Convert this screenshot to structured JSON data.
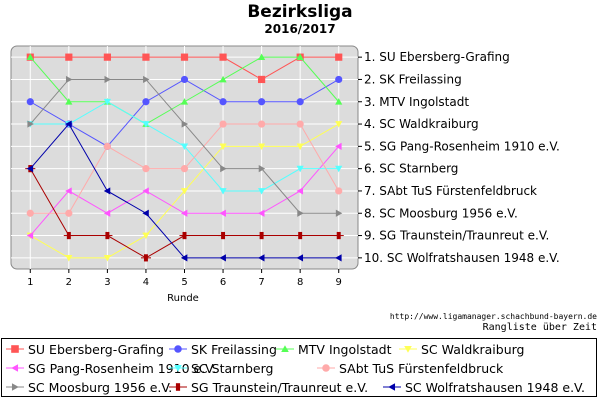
{
  "title": "Bezirksliga",
  "subtitle": "2016/2017",
  "url": "http://www.ligamanager.schachbund-bayern.de",
  "caption": "Rangliste über Zeit",
  "xlabel": "Runde",
  "chart_data": {
    "type": "line",
    "title": "Bezirksliga",
    "subtitle": "2016/2017",
    "xlabel": "Runde",
    "ylabel": "",
    "x": [
      1,
      2,
      3,
      4,
      5,
      6,
      7,
      8,
      9
    ],
    "xlim": [
      0.5,
      9.5
    ],
    "ylim": [
      0.5,
      10.5
    ],
    "y_inverted": true,
    "grid": true,
    "legend": "bottom",
    "rank_labels": [
      "1. SU Ebersberg-Grafing",
      "2. SK Freilassing",
      "3. MTV Ingolstadt",
      "4. SC Waldkraiburg",
      "5. SG Pang-Rosenheim 1910 e.V.",
      "6. SC Starnberg",
      "7. SAbt TuS Fürstenfeldbruck",
      "8. SC Moosburg 1956 e.V.",
      "9. SG Traunstein/Traunreut e.V.",
      "10. SC Wolfratshausen 1948 e.V."
    ],
    "series": [
      {
        "name": "SU Ebersberg-Grafing",
        "color": "#ff5555",
        "marker": "square",
        "values": [
          1,
          1,
          1,
          1,
          1,
          1,
          2,
          1,
          1
        ]
      },
      {
        "name": "SK Freilassing",
        "color": "#5555ff",
        "marker": "circle",
        "values": [
          3,
          4,
          5,
          3,
          2,
          3,
          3,
          3,
          2
        ]
      },
      {
        "name": "MTV Ingolstadt",
        "color": "#55ff55",
        "marker": "triangle-up",
        "values": [
          1,
          3,
          3,
          4,
          3,
          2,
          1,
          1,
          3
        ]
      },
      {
        "name": "SC Waldkraiburg",
        "color": "#ffff55",
        "marker": "triangle-down",
        "values": [
          9,
          10,
          10,
          9,
          7,
          5,
          5,
          5,
          4
        ]
      },
      {
        "name": "SG Pang-Rosenheim 1910 e.V.",
        "color": "#ff55ff",
        "marker": "triangle-left",
        "values": [
          9,
          7,
          8,
          7,
          8,
          8,
          8,
          7,
          5
        ]
      },
      {
        "name": "SC Starnberg",
        "color": "#55ffff",
        "marker": "triangle-down",
        "values": [
          4,
          4,
          3,
          4,
          5,
          7,
          7,
          6,
          6
        ]
      },
      {
        "name": "SAbt TuS Fürstenfeldbruck",
        "color": "#ffaaaa",
        "marker": "circle",
        "values": [
          8,
          8,
          5,
          6,
          6,
          4,
          4,
          4,
          7
        ]
      },
      {
        "name": "SC Moosburg 1956 e.V.",
        "color": "#888888",
        "marker": "triangle-right",
        "values": [
          4,
          2,
          2,
          2,
          4,
          6,
          6,
          8,
          8
        ]
      },
      {
        "name": "SG Traunstein/Traunreut e.V.",
        "color": "#aa0000",
        "marker": "plus-square",
        "values": [
          6,
          9,
          9,
          10,
          9,
          9,
          9,
          9,
          9
        ]
      },
      {
        "name": "SC Wolfratshausen 1948 e.V.",
        "color": "#0000aa",
        "marker": "triangle-left",
        "values": [
          6,
          4,
          7,
          8,
          10,
          10,
          10,
          10,
          10
        ]
      }
    ]
  }
}
